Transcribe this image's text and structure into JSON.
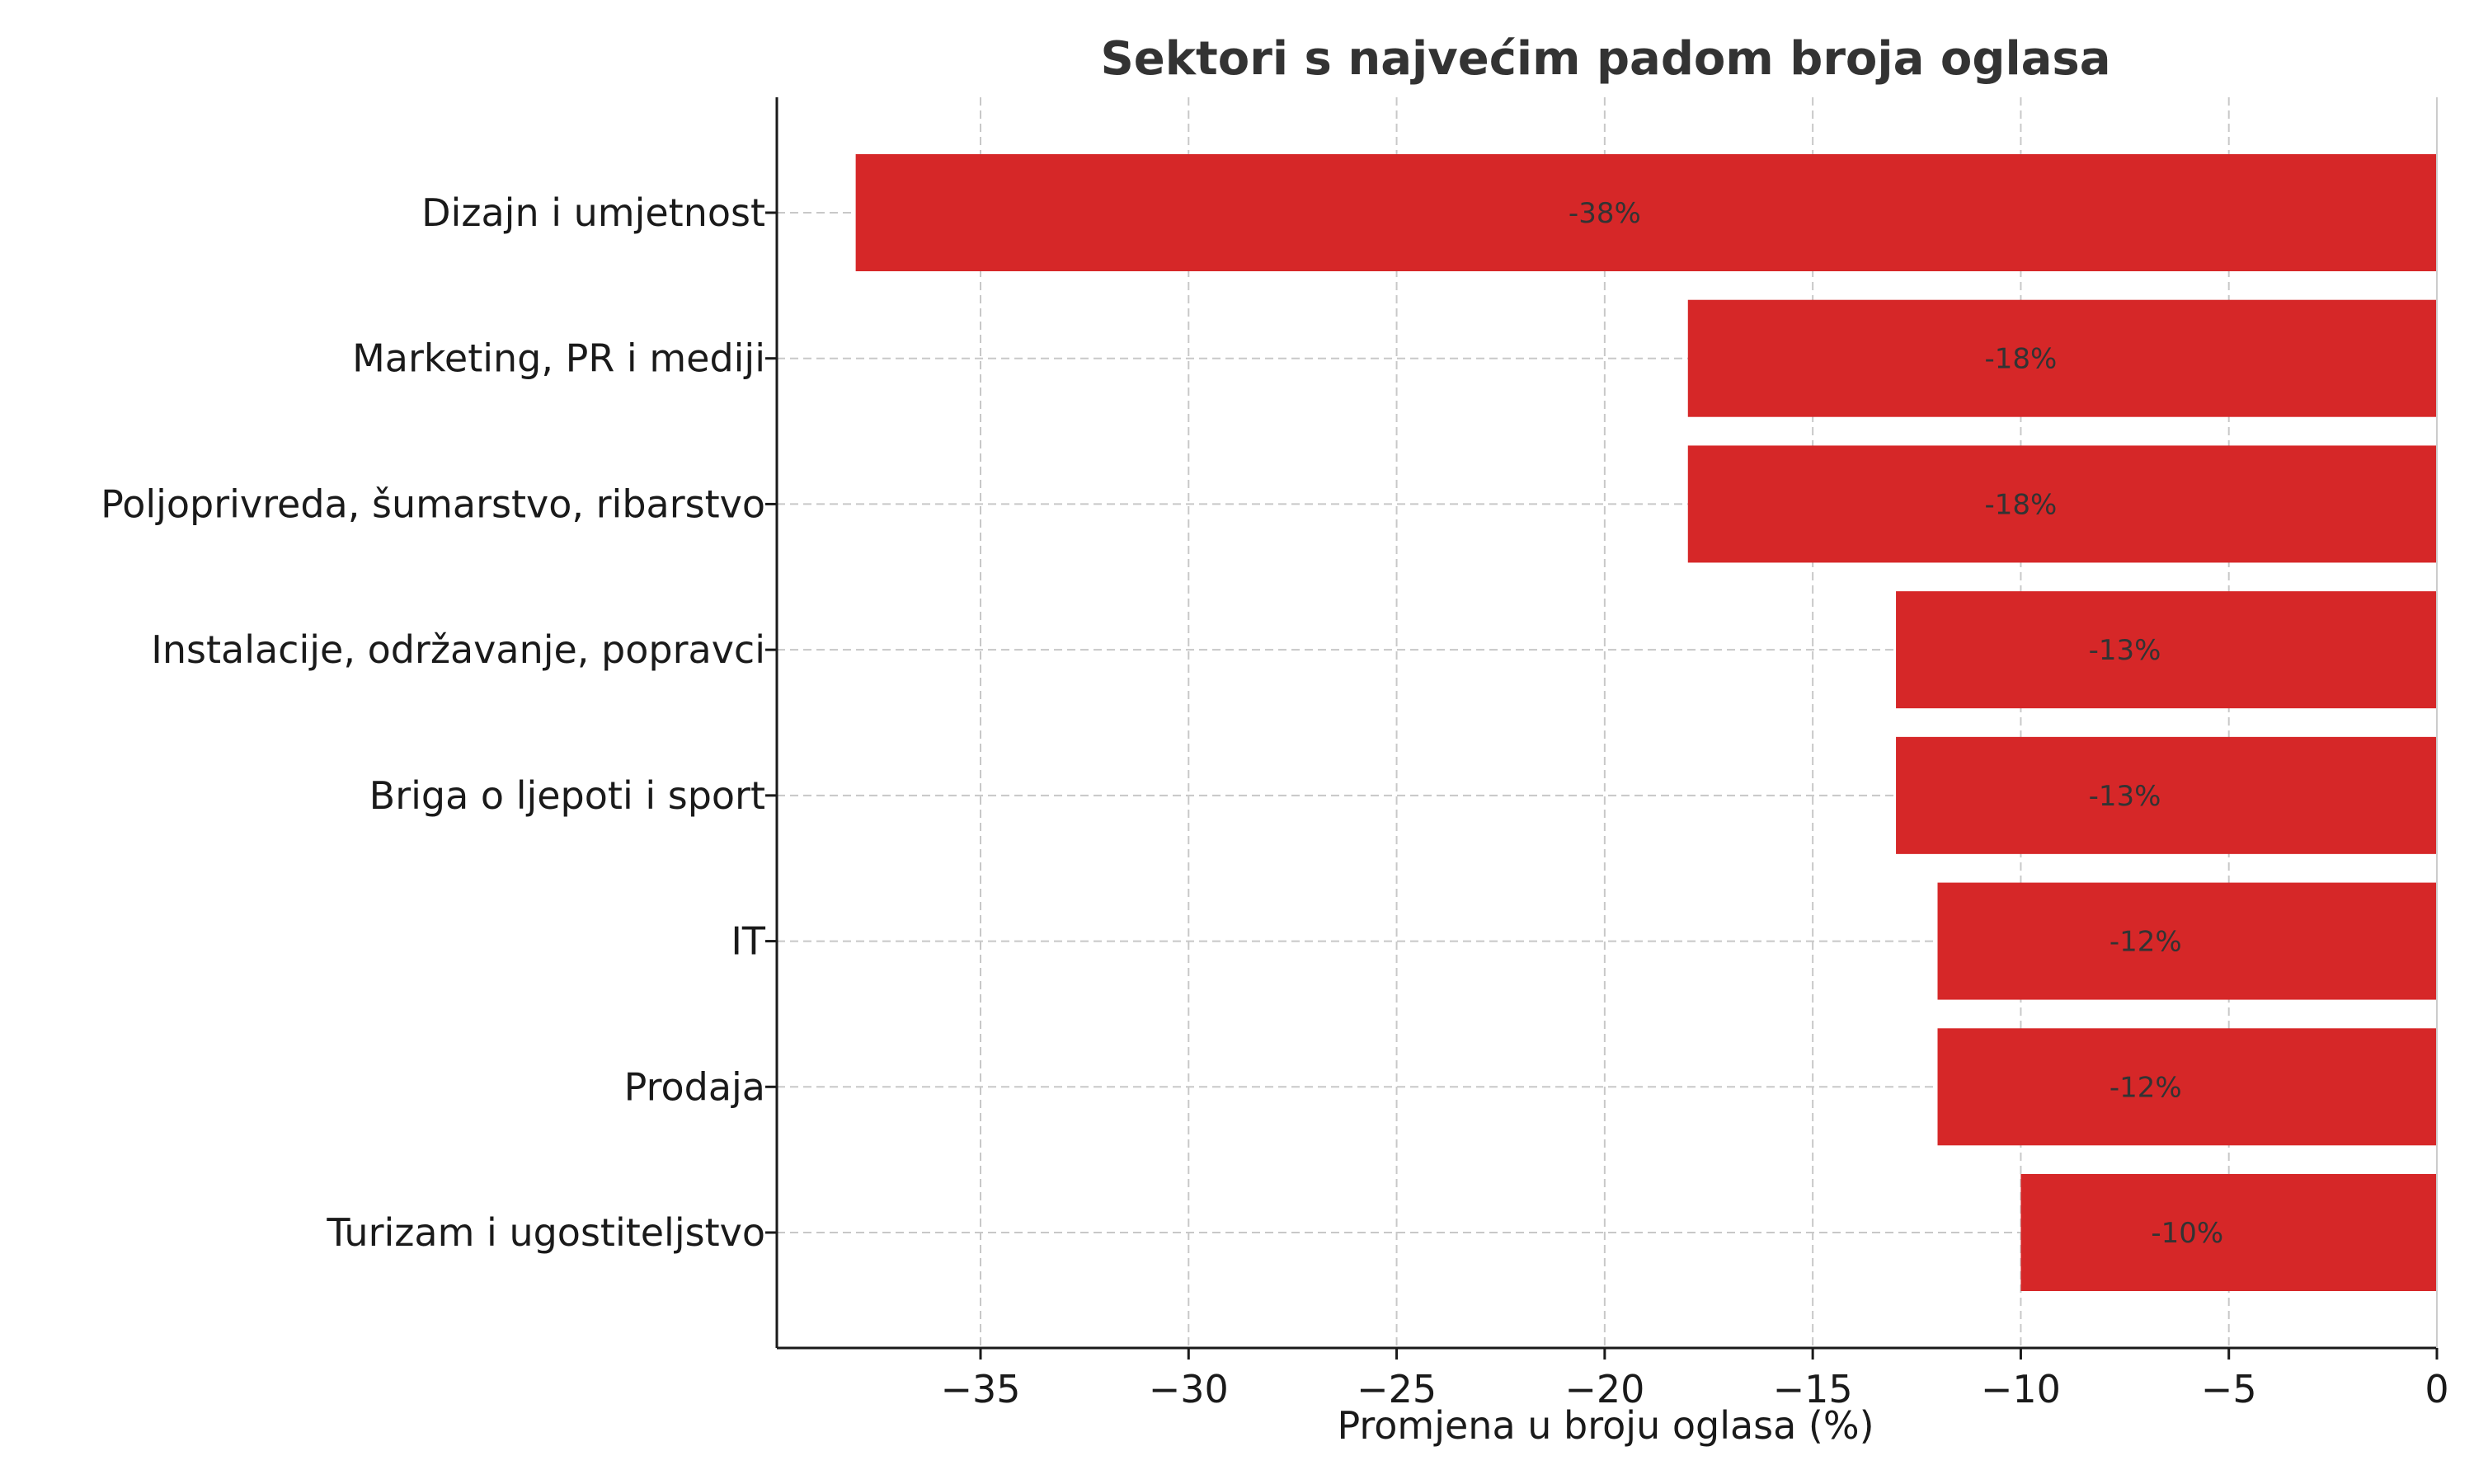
{
  "chart_data": {
    "type": "bar",
    "orientation": "horizontal",
    "title": "Sektori s najvećim padom broja oglasa",
    "xlabel": "Promjena u broju oglasa (%)",
    "ylabel": "",
    "xlim": [
      -40,
      0
    ],
    "xticks": [
      -35,
      -30,
      -25,
      -20,
      -15,
      -10,
      -5,
      0
    ],
    "xtick_labels": [
      "−35",
      "−30",
      "−25",
      "−20",
      "−15",
      "−10",
      "−5",
      "0"
    ],
    "grid": true,
    "bar_color": "#d62728",
    "categories": [
      "Dizajn i umjetnost",
      "Marketing, PR i mediji",
      "Poljoprivreda, šumarstvo, ribarstvo",
      "Instalacije, održavanje, popravci",
      "Briga o ljepoti i sport",
      "IT",
      "Prodaja",
      "Turizam i ugostiteljstvo"
    ],
    "values": [
      -38,
      -18,
      -18,
      -13,
      -13,
      -12,
      -12,
      -10
    ],
    "data_labels": [
      "-38%",
      "-18%",
      "-18%",
      "-13%",
      "-13%",
      "-12%",
      "-12%",
      "-10%"
    ]
  }
}
